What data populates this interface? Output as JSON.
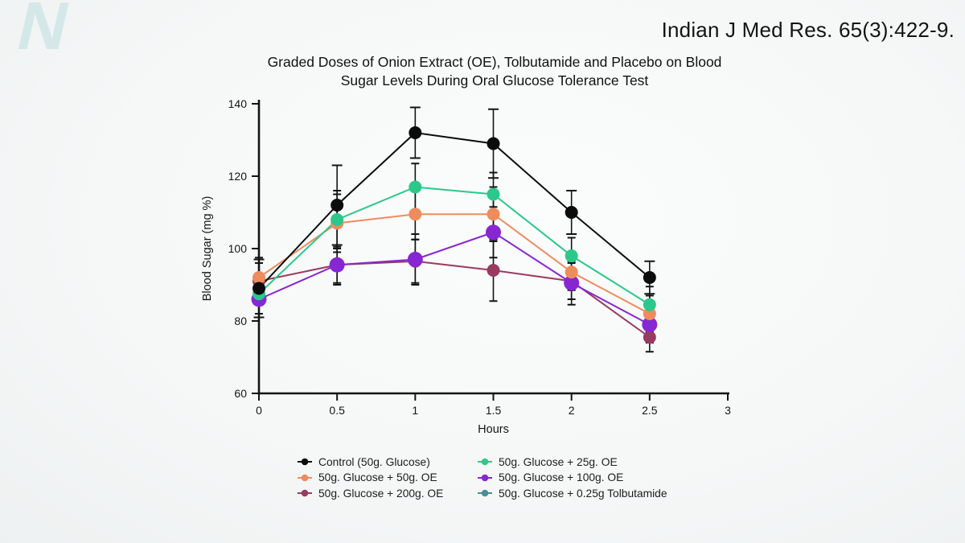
{
  "header": {
    "logo_letter": "N",
    "citation": "Indian J Med Res. 65(3):422-9."
  },
  "chart_data": {
    "type": "line",
    "title": "Graded Doses of Onion Extract (OE), Tolbutamide and Placebo on Blood Sugar Levels During Oral Glucose Tolerance Test",
    "title_lines": [
      "Graded Doses of Onion Extract (OE), Tolbutamide and Placebo on Blood",
      "Sugar Levels During Oral Glucose Tolerance Test"
    ],
    "xlabel": "Hours",
    "ylabel": "Blood Sugar (mg %)",
    "xlim": [
      0,
      3
    ],
    "ylim": [
      60,
      140
    ],
    "xtick_values": [
      0,
      0.5,
      1,
      1.5,
      2,
      2.5,
      3
    ],
    "xtick_labels": [
      "0",
      "0.5",
      "1",
      "1.5",
      "2",
      "2.5",
      "3"
    ],
    "ytick_values": [
      60,
      80,
      100,
      120,
      140
    ],
    "ytick_labels": [
      "60",
      "80",
      "100",
      "120",
      "140"
    ],
    "x": [
      0,
      0.5,
      1,
      1.5,
      2,
      2.5
    ],
    "grid": false,
    "legend_position": "bottom",
    "error_bar_color": "#141414",
    "series": [
      {
        "name": "Control (50g. Glucose)",
        "color": "#0c0c0c",
        "marker_r": 8,
        "cap": 6.5,
        "values": [
          89,
          112,
          132,
          129,
          110,
          92
        ],
        "err": [
          8,
          11,
          7,
          9.5,
          6,
          4.5
        ],
        "plotted": true
      },
      {
        "name": "50g. Glucose + 25g. OE",
        "color": "#2ac98b",
        "marker_r": 8,
        "cap": 5,
        "values": [
          87.5,
          108,
          117,
          115,
          98,
          84.5
        ],
        "err": [
          5.5,
          8,
          6.5,
          6,
          5,
          5
        ],
        "plotted": true
      },
      {
        "name": "50g. Glucose + 50g. OE",
        "color": "#ee8c5d",
        "marker_r": 8,
        "cap": 5,
        "values": [
          92,
          107,
          109.5,
          109.5,
          93.5,
          82
        ],
        "err": [
          5.5,
          8,
          7,
          7.5,
          5,
          5
        ],
        "plotted": true
      },
      {
        "name": "50g. Glucose + 100g. OE",
        "color": "#8627d3",
        "marker_r": 9.5,
        "cap": 5,
        "values": [
          86,
          95.5,
          97,
          104.5,
          90.5,
          79
        ],
        "err": [
          5,
          5.5,
          7,
          7,
          6,
          5
        ],
        "plotted": true
      },
      {
        "name": "50g. Glucose + 200g. OE",
        "color": "#993a60",
        "marker_r": 8,
        "cap": 5,
        "values": [
          91,
          95.5,
          96.5,
          94,
          91,
          75.5
        ],
        "err": [
          5,
          5,
          6,
          8.5,
          5,
          4
        ],
        "plotted": true
      },
      {
        "name": "50g. Glucose + 0.25g Tolbutamide",
        "color": "#4b8d9a",
        "marker_r": 8,
        "cap": 5,
        "values": [],
        "err": [],
        "plotted": false
      }
    ],
    "draw_order": [
      4,
      3,
      2,
      1,
      0
    ],
    "legend_columns": [
      [
        0,
        2,
        4
      ],
      [
        1,
        3,
        5
      ]
    ]
  }
}
